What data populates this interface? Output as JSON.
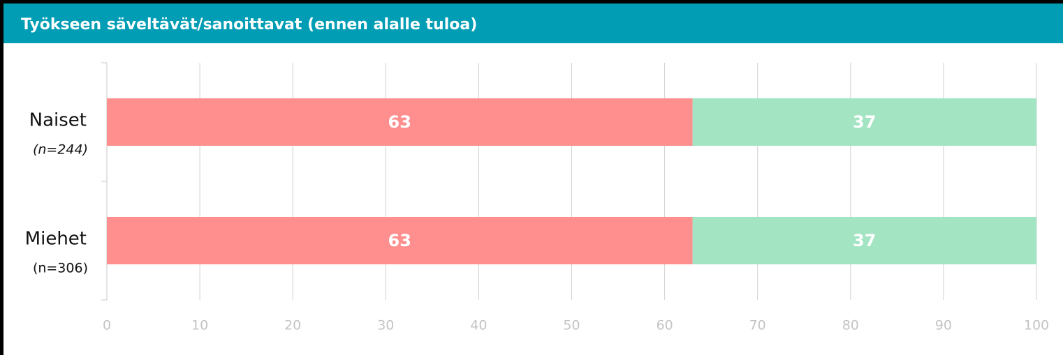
{
  "chart_data": {
    "type": "bar",
    "orientation": "horizontal",
    "stacked": true,
    "title": "Työkseen säveltävät/sanoittavat (ennen alalle tuloa)",
    "categories": [
      "Naiset",
      "Miehet"
    ],
    "category_notes": [
      "(n=244)",
      "(n=306)"
    ],
    "series": [
      {
        "color": "#ff8f8f",
        "values": [
          63,
          63
        ]
      },
      {
        "color": "#a3e4c3",
        "values": [
          37,
          37
        ]
      }
    ],
    "xlim": [
      0,
      100
    ],
    "xticks": [
      0,
      10,
      20,
      30,
      40,
      50,
      60,
      70,
      80,
      90,
      100
    ],
    "grid": true
  }
}
